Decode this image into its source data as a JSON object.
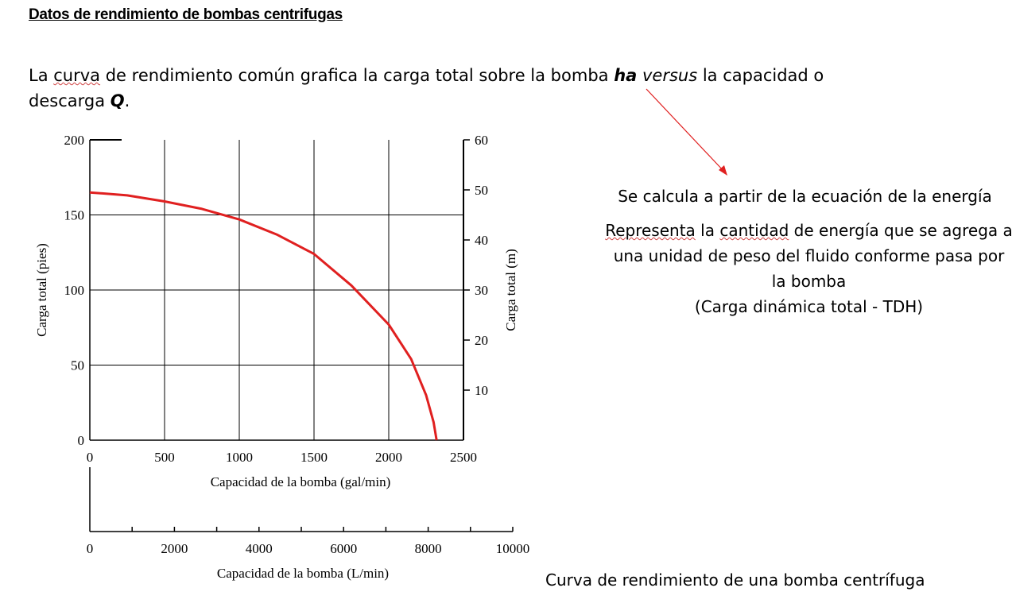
{
  "header": {
    "title": "Datos de rendimiento de bombas centrifugas"
  },
  "intro": {
    "part1": "La ",
    "curva": "curva",
    "part2": " de rendimiento común grafica la carga total sobre la bomba ",
    "ha": "ha",
    "versus": " versus",
    "part3": " la capacidad o descarga ",
    "Q": "Q",
    "part4": "."
  },
  "annotations": {
    "energy_equation": "Se calcula a partir de la ecuación de la energía",
    "represents": {
      "w1": "Representa",
      "w2": " la ",
      "w3": "cantidad",
      "w4": " de energía que se agrega a una unidad de peso del fluido conforme pasa por la bomba",
      "line2": "(Carga dinámica total - TDH)"
    },
    "caption": "Curva de rendimiento de una bomba centrífuga",
    "arrow_color": "#e02020"
  },
  "chart_data": {
    "type": "line",
    "title": "",
    "xlabel": "Capacidad de la bomba (gal/min)",
    "xlabel_secondary": "Capacidad de la bomba (L/min)",
    "ylabel": "Carga total (pies)",
    "ylabel_secondary": "Carga total (m)",
    "xlim": [
      0,
      2500
    ],
    "ylim": [
      0,
      200
    ],
    "xlim_secondary": [
      0,
      10000
    ],
    "ylim_secondary": [
      0,
      60
    ],
    "xticks": [
      "0",
      "500",
      "1000",
      "1500",
      "2000",
      "2500"
    ],
    "yticks": [
      "0",
      "50",
      "100",
      "150",
      "200"
    ],
    "xticks_secondary": [
      "0",
      "2000",
      "4000",
      "6000",
      "8000",
      "10000"
    ],
    "yticks_secondary": [
      "10",
      "20",
      "30",
      "40",
      "50",
      "60"
    ],
    "grid": true,
    "series": [
      {
        "color": "#e02020",
        "x": [
          0,
          250,
          500,
          750,
          1000,
          1250,
          1500,
          1750,
          2000,
          2150,
          2250,
          2300,
          2320
        ],
        "y": [
          165,
          163,
          159,
          154,
          147,
          137,
          124,
          103,
          77,
          54,
          30,
          12,
          0
        ]
      }
    ]
  }
}
